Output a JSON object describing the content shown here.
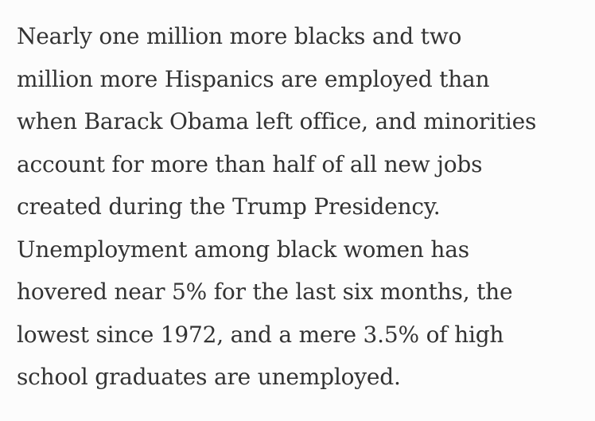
{
  "paragraph": {
    "lines": [
      "Nearly one million more blacks and two",
      "million more Hispanics are employed than",
      "when Barack Obama left office, and minorities",
      "account for more than half of all new jobs",
      "created during the Trump Presidency.",
      "Unemployment among black women has",
      "hovered near 5% for the last six months, the",
      "lowest since 1972, and a mere 3.5% of high",
      "school graduates are unemployed."
    ]
  }
}
